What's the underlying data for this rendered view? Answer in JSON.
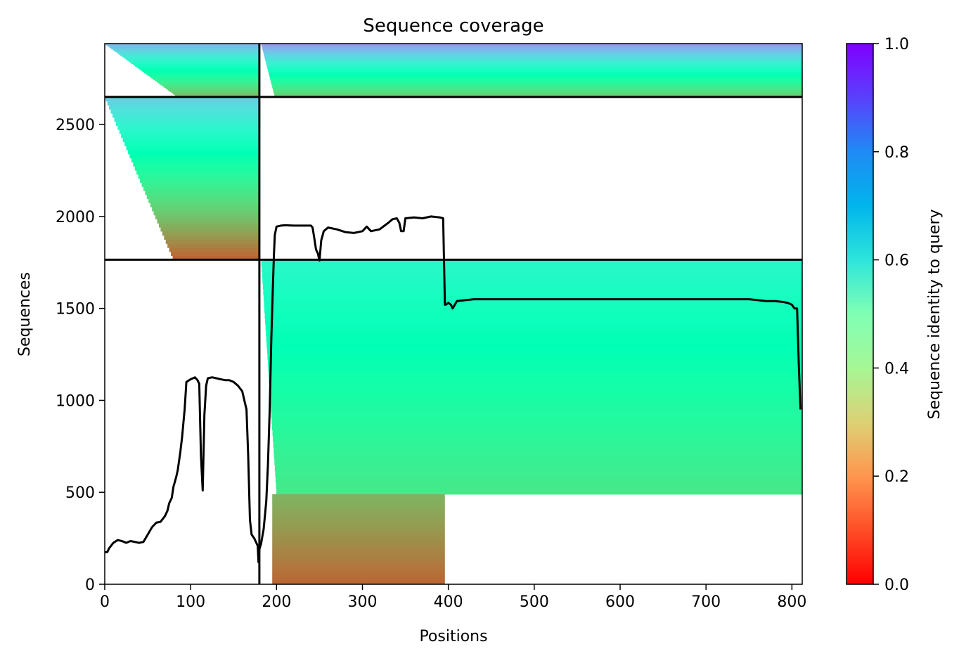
{
  "chart_data": {
    "type": "heatmap",
    "title": "Sequence coverage",
    "xlabel": "Positions",
    "ylabel": "Sequences",
    "xlim": [
      0,
      812
    ],
    "ylim": [
      0,
      2940
    ],
    "xticks": [
      0,
      100,
      200,
      300,
      400,
      500,
      600,
      700,
      800
    ],
    "yticks": [
      0,
      500,
      1000,
      1500,
      2000,
      2500
    ],
    "grid": false,
    "colorbar": {
      "label": "Sequence identity to query",
      "colormap": "rainbow_r",
      "range": [
        0.0,
        1.0
      ],
      "ticks": [
        "0.0",
        "0.2",
        "0.4",
        "0.6",
        "0.8",
        "1.0"
      ]
    },
    "chain_boundaries": {
      "x_positions": [
        180
      ],
      "y_rows": [
        1765,
        2650
      ]
    },
    "blocks": [
      {
        "name": "chain1-rows-2650-2940",
        "x_range": [
          0,
          180
        ],
        "y_range": [
          2650,
          2940
        ],
        "identity_bottom": 0.25,
        "identity_top": 0.75,
        "onset_bottom": 85,
        "onset_top": 0
      },
      {
        "name": "chain2-rows-2650-2940",
        "x_range": [
          180,
          812
        ],
        "y_range": [
          2650,
          2940
        ],
        "identity_bottom": 0.28,
        "identity_top": 0.8,
        "onset_bottom": 198,
        "onset_top": 182
      },
      {
        "name": "chain1-rows-1765-2650",
        "x_range": [
          0,
          180
        ],
        "y_range": [
          1765,
          2650
        ],
        "identity_bottom": 0.12,
        "identity_top": 0.7,
        "onset_bottom": 80,
        "onset_top": 0
      },
      {
        "name": "chain2-rows-0-1765-long",
        "x_range": [
          180,
          812
        ],
        "y_range": [
          490,
          1765
        ],
        "identity_bottom": 0.36,
        "identity_top": 0.58,
        "onset_bottom": 200,
        "onset_top": 182
      },
      {
        "name": "chain2-rows-0-490-short",
        "x_range": [
          180,
          396
        ],
        "y_range": [
          0,
          490
        ],
        "identity_bottom": 0.13,
        "identity_top": 0.25,
        "onset_bottom": 195,
        "onset_top": 195
      }
    ],
    "coverage_line": {
      "name": "coverage",
      "color": "#000000",
      "x": [
        0,
        3,
        5,
        10,
        15,
        20,
        25,
        30,
        35,
        40,
        45,
        50,
        55,
        60,
        65,
        70,
        73,
        75,
        78,
        80,
        83,
        85,
        88,
        90,
        93,
        95,
        100,
        105,
        108,
        110,
        112,
        114,
        116,
        118,
        120,
        125,
        130,
        135,
        140,
        145,
        150,
        155,
        160,
        165,
        167,
        169,
        171,
        174,
        176,
        178,
        179,
        180,
        182,
        185,
        188,
        190,
        192,
        193,
        194,
        195,
        196,
        197,
        198,
        200,
        205,
        210,
        220,
        230,
        240,
        242,
        244,
        246,
        248,
        250,
        252,
        255,
        260,
        270,
        280,
        290,
        300,
        305,
        310,
        320,
        330,
        335,
        340,
        343,
        345,
        348,
        350,
        360,
        370,
        380,
        390,
        394,
        396,
        397,
        400,
        403,
        405,
        410,
        420,
        430,
        440,
        450,
        460,
        470,
        480,
        490,
        500,
        520,
        540,
        560,
        580,
        600,
        620,
        640,
        660,
        680,
        700,
        720,
        740,
        750,
        760,
        770,
        780,
        790,
        795,
        800,
        803,
        805,
        806,
        808,
        810
      ],
      "y": [
        175,
        175,
        195,
        225,
        240,
        235,
        225,
        235,
        230,
        225,
        230,
        270,
        310,
        335,
        340,
        370,
        400,
        440,
        470,
        530,
        580,
        620,
        720,
        800,
        950,
        1100,
        1115,
        1125,
        1110,
        1090,
        700,
        510,
        920,
        1080,
        1120,
        1125,
        1120,
        1115,
        1110,
        1110,
        1100,
        1080,
        1050,
        950,
        700,
        350,
        270,
        250,
        230,
        210,
        120,
        190,
        220,
        300,
        450,
        650,
        950,
        1150,
        1350,
        1500,
        1650,
        1800,
        1900,
        1945,
        1950,
        1952,
        1950,
        1950,
        1950,
        1940,
        1880,
        1820,
        1800,
        1760,
        1870,
        1920,
        1940,
        1930,
        1915,
        1910,
        1920,
        1945,
        1920,
        1930,
        1965,
        1985,
        1990,
        1965,
        1920,
        1920,
        1990,
        1995,
        1990,
        2000,
        1995,
        1990,
        1520,
        1520,
        1530,
        1520,
        1500,
        1540,
        1545,
        1550,
        1550,
        1550,
        1550,
        1550,
        1550,
        1550,
        1550,
        1550,
        1550,
        1550,
        1550,
        1550,
        1550,
        1550,
        1550,
        1550,
        1550,
        1550,
        1550,
        1550,
        1545,
        1540,
        1540,
        1535,
        1530,
        1520,
        1500,
        1500,
        1500,
        1200,
        950
      ]
    }
  }
}
